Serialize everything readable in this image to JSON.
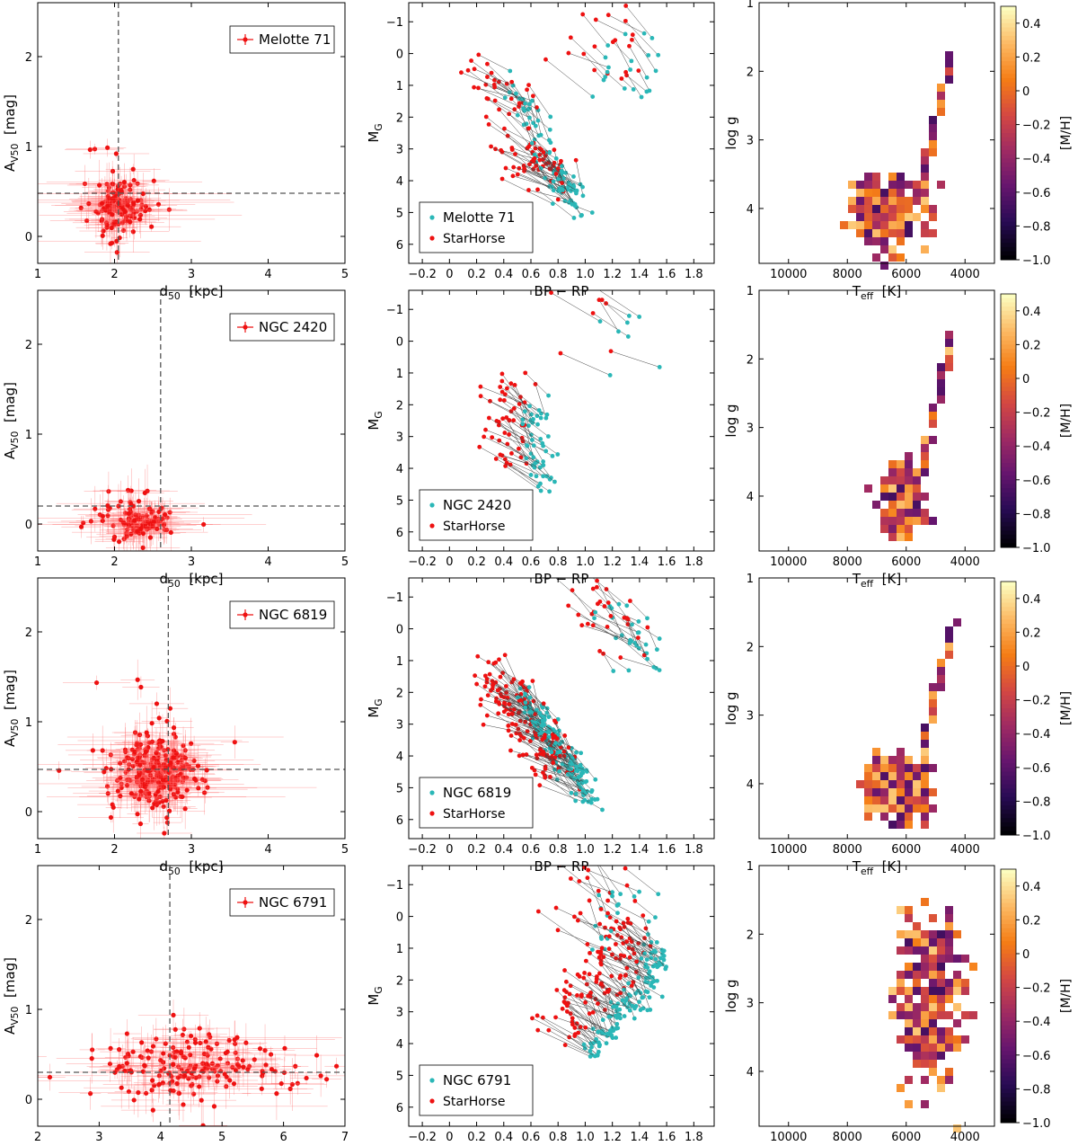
{
  "colors": {
    "obs": "#2ab7b7",
    "starhorse": "#ee1111",
    "errorbar": "#ff6666",
    "guide": "#555555",
    "link": "#444444"
  },
  "labels": {
    "d_main": "d",
    "d_sub": "50",
    "d_unit": "[kpc]",
    "a_main": "A",
    "a_sub": "V50",
    "a_unit": "[mag]",
    "bprp": "BP − RP",
    "mg_main": "M",
    "mg_sub": "G",
    "teff_main": "T",
    "teff_sub": "eff",
    "teff_unit": "[K]",
    "logg": "log g",
    "cbar": "[M/H]"
  },
  "legend_starhorse": "StarHorse",
  "chart_data": [
    {
      "type": "errorbar-scatter",
      "cluster": "Melotte 71",
      "xlim": [
        1,
        5
      ],
      "ylim": [
        -0.3,
        2.6
      ],
      "xticks": [
        "1",
        "2",
        "3",
        "4",
        "5"
      ],
      "yticks": [
        "0",
        "1",
        "2"
      ],
      "ref_d50": 2.05,
      "ref_av50": 0.48,
      "cloud": {
        "center": [
          2.05,
          0.33
        ],
        "spread": [
          0.17,
          0.14
        ],
        "n": 150
      }
    },
    {
      "type": "scatter-cmd",
      "cluster": "Melotte 71",
      "xlim": [
        -0.3,
        1.95
      ],
      "ylim": [
        6.6,
        -1.6
      ],
      "xticks": [
        "−0.2",
        "0",
        "0.2",
        "0.4",
        "0.6",
        "0.8",
        "1.0",
        "1.2",
        "1.4",
        "1.6",
        "1.8"
      ],
      "yticks": [
        "−1",
        "0",
        "1",
        "2",
        "3",
        "4",
        "5",
        "6"
      ],
      "main_sequence": [
        [
          0.5,
          1.0
        ],
        [
          0.75,
          3.5
        ],
        [
          0.95,
          5.0
        ]
      ],
      "n_pairs": 120
    },
    {
      "type": "heatmap-kiel",
      "cluster": "Melotte 71",
      "xlim": [
        11000,
        3000
      ],
      "ylim": [
        1,
        4.8
      ],
      "xticks": [
        "10000",
        "8000",
        "6000",
        "4000"
      ],
      "yticks": [
        "1",
        "2",
        "3",
        "4"
      ],
      "colorbar": [
        "0.4",
        "0.2",
        "0",
        "−0.2",
        "−0.4",
        "−0.6",
        "−0.8",
        "−1.0"
      ],
      "blob": {
        "center": [
          6600,
          4.05
        ],
        "spread": [
          600,
          0.22
        ]
      }
    },
    {
      "type": "errorbar-scatter",
      "cluster": "NGC 2420",
      "xlim": [
        1,
        5
      ],
      "ylim": [
        -0.3,
        2.6
      ],
      "xticks": [
        "1",
        "2",
        "3",
        "4",
        "5"
      ],
      "yticks": [
        "0",
        "1",
        "2"
      ],
      "ref_d50": 2.6,
      "ref_av50": 0.2,
      "cloud": {
        "center": [
          2.3,
          0.02
        ],
        "spread": [
          0.2,
          0.09
        ],
        "n": 120
      }
    },
    {
      "type": "scatter-cmd",
      "cluster": "NGC 2420",
      "xlim": [
        -0.3,
        1.95
      ],
      "ylim": [
        6.6,
        -1.6
      ],
      "xticks": [
        "−0.2",
        "0",
        "0.2",
        "0.4",
        "0.6",
        "0.8",
        "1.0",
        "1.2",
        "1.4",
        "1.6",
        "1.8"
      ],
      "yticks": [
        "−1",
        "0",
        "1",
        "2",
        "3",
        "4",
        "5",
        "6"
      ],
      "main_sequence": [
        [
          0.62,
          2.0
        ],
        [
          0.62,
          3.5
        ],
        [
          0.72,
          4.6
        ]
      ],
      "n_pairs": 60
    },
    {
      "type": "heatmap-kiel",
      "cluster": "NGC 2420",
      "xlim": [
        11000,
        3000
      ],
      "ylim": [
        1,
        4.8
      ],
      "xticks": [
        "10000",
        "8000",
        "6000",
        "4000"
      ],
      "yticks": [
        "1",
        "2",
        "3",
        "4"
      ],
      "colorbar": [
        "0.4",
        "0.2",
        "0",
        "−0.2",
        "−0.4",
        "−0.6",
        "−0.8",
        "−1.0"
      ],
      "blob": {
        "center": [
          6100,
          4.1
        ],
        "spread": [
          300,
          0.25
        ]
      }
    },
    {
      "type": "errorbar-scatter",
      "cluster": "NGC 6819",
      "xlim": [
        1,
        5
      ],
      "ylim": [
        -0.3,
        2.6
      ],
      "xticks": [
        "1",
        "2",
        "3",
        "4",
        "5"
      ],
      "yticks": [
        "0",
        "1",
        "2"
      ],
      "ref_d50": 2.7,
      "ref_av50": 0.47,
      "cloud": {
        "center": [
          2.55,
          0.45
        ],
        "spread": [
          0.22,
          0.18
        ],
        "n": 300
      }
    },
    {
      "type": "scatter-cmd",
      "cluster": "NGC 6819",
      "xlim": [
        -0.3,
        1.95
      ],
      "ylim": [
        6.6,
        -1.6
      ],
      "xticks": [
        "−0.2",
        "0",
        "0.2",
        "0.4",
        "0.6",
        "0.8",
        "1.0",
        "1.2",
        "1.4",
        "1.6",
        "1.8"
      ],
      "yticks": [
        "−1",
        "0",
        "1",
        "2",
        "3",
        "4",
        "5",
        "6"
      ],
      "main_sequence": [
        [
          0.55,
          2.2
        ],
        [
          0.8,
          3.8
        ],
        [
          1.05,
          5.3
        ]
      ],
      "n_pairs": 200
    },
    {
      "type": "heatmap-kiel",
      "cluster": "NGC 6819",
      "xlim": [
        11000,
        3000
      ],
      "ylim": [
        1,
        4.8
      ],
      "xticks": [
        "10000",
        "8000",
        "6000",
        "4000"
      ],
      "yticks": [
        "1",
        "2",
        "3",
        "4"
      ],
      "colorbar": [
        "0.4",
        "0.2",
        "0",
        "−0.2",
        "−0.4",
        "−0.6",
        "−0.8",
        "−1.0"
      ],
      "blob": {
        "center": [
          6300,
          4.1
        ],
        "spread": [
          500,
          0.2
        ]
      }
    },
    {
      "type": "errorbar-scatter",
      "cluster": "NGC 6791",
      "xlim": [
        2,
        7
      ],
      "ylim": [
        -0.3,
        2.6
      ],
      "xticks": [
        "2",
        "3",
        "4",
        "5",
        "6",
        "7"
      ],
      "yticks": [
        "0",
        "1",
        "2"
      ],
      "ref_d50": 4.15,
      "ref_av50": 0.3,
      "cloud": {
        "center": [
          4.6,
          0.36
        ],
        "spread": [
          0.8,
          0.16
        ],
        "n": 200
      }
    },
    {
      "type": "scatter-cmd",
      "cluster": "NGC 6791",
      "xlim": [
        -0.3,
        1.95
      ],
      "ylim": [
        6.6,
        -1.6
      ],
      "xticks": [
        "−0.2",
        "0",
        "0.2",
        "0.4",
        "0.6",
        "0.8",
        "1.0",
        "1.2",
        "1.4",
        "1.6",
        "1.8"
      ],
      "yticks": [
        "−1",
        "0",
        "1",
        "2",
        "3",
        "4",
        "5",
        "6"
      ],
      "main_sequence": [
        [
          1.55,
          1.0
        ],
        [
          1.45,
          2.3
        ],
        [
          1.2,
          3.3
        ],
        [
          1.05,
          4.3
        ]
      ],
      "n_pairs": 150
    },
    {
      "type": "heatmap-kiel",
      "cluster": "NGC 6791",
      "xlim": [
        11000,
        3000
      ],
      "ylim": [
        1,
        4.8
      ],
      "xticks": [
        "10000",
        "8000",
        "6000",
        "4000"
      ],
      "yticks": [
        "1",
        "2",
        "3",
        "4"
      ],
      "colorbar": [
        "0.4",
        "0.2",
        "0",
        "−0.2",
        "−0.4",
        "−0.6",
        "−0.8",
        "−1.0"
      ],
      "blob": {
        "center": [
          5200,
          3.0
        ],
        "spread": [
          500,
          0.6
        ]
      }
    }
  ]
}
